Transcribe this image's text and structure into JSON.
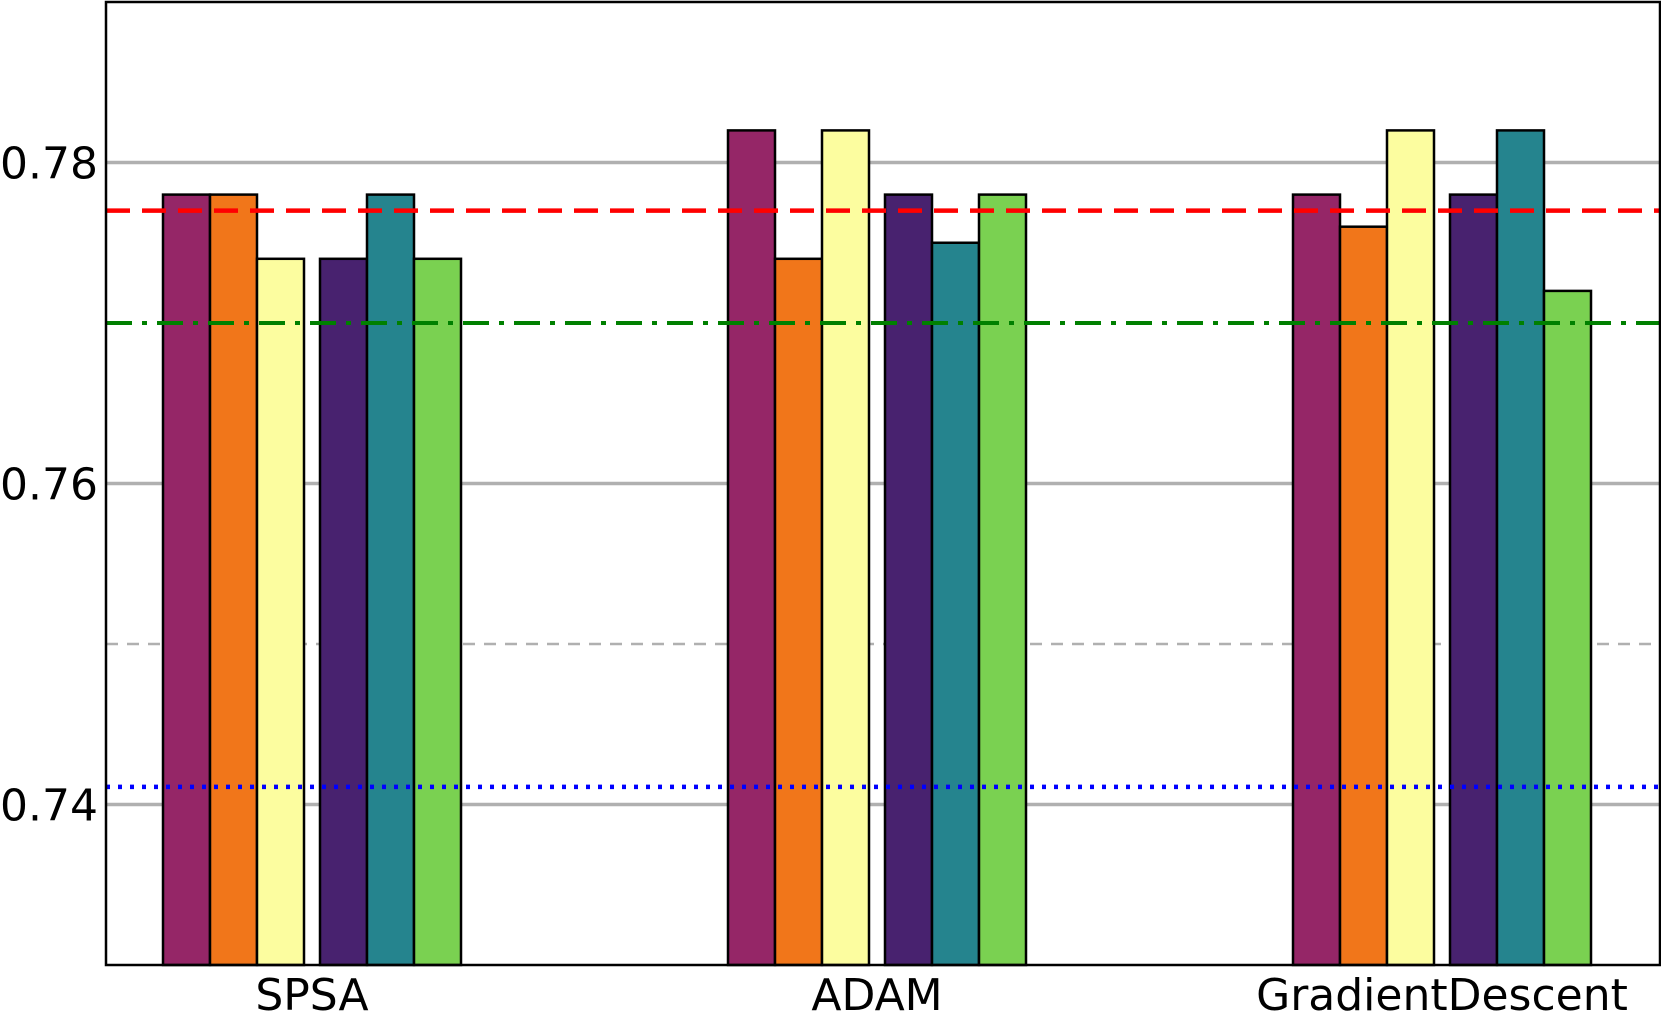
{
  "chart_data": {
    "type": "bar",
    "categories": [
      "SPSA",
      "ADAM",
      "GradientDescent"
    ],
    "series": [
      {
        "color": "#952667",
        "values": [
          0.778,
          0.782,
          0.778
        ]
      },
      {
        "color": "#f1761a",
        "values": [
          0.778,
          0.774,
          0.776
        ]
      },
      {
        "color": "#fcfd9f",
        "values": [
          0.774,
          0.782,
          0.782
        ]
      },
      {
        "color": "#48226f",
        "values": [
          0.774,
          0.778,
          0.778
        ]
      },
      {
        "color": "#25848e",
        "values": [
          0.778,
          0.775,
          0.782
        ]
      },
      {
        "color": "#7ad151",
        "values": [
          0.774,
          0.778,
          0.772
        ]
      }
    ],
    "ylim": [
      0.73,
      0.79
    ],
    "yticks": [
      "0.74",
      "0.76",
      "0.78"
    ],
    "ytick_values": [
      0.74,
      0.76,
      0.78
    ],
    "grid": {
      "axis": "y",
      "major": true,
      "minor_dashed_at": [
        0.75
      ]
    },
    "reference_lines": [
      {
        "value": 0.777,
        "color": "#ff0000",
        "style": "dashed"
      },
      {
        "value": 0.77,
        "color": "#008000",
        "style": "dashdot"
      },
      {
        "value": 0.7411,
        "color": "#0000ff",
        "style": "dotted"
      }
    ],
    "title": "",
    "xlabel": "",
    "ylabel": ""
  }
}
